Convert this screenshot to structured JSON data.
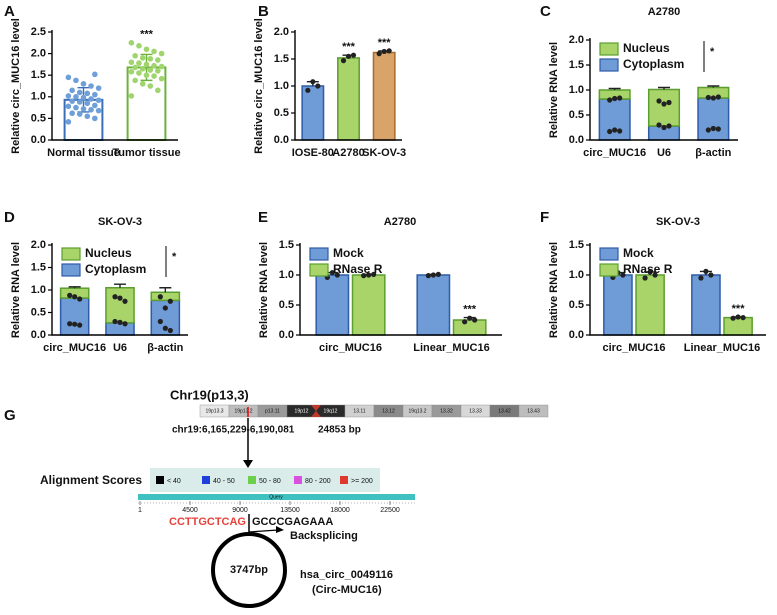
{
  "chart_data": [
    {
      "type": "bar",
      "panel": "A",
      "ylabel": "Relative circ_MUC16 level",
      "categories": [
        "Normal tissue",
        "Tumor tissue"
      ],
      "series": [
        {
          "colors": [
            "#3d6fb8",
            "#6cb23c"
          ],
          "point_colors": [
            "#6e9fd9",
            "#9fd56c"
          ],
          "bar_style": "outline",
          "values": [
            0.93,
            1.68
          ],
          "errors": [
            0.28,
            0.3
          ],
          "points": [
            [
              0.42,
              0.5,
              0.55,
              0.6,
              0.62,
              0.68,
              0.7,
              0.72,
              0.75,
              0.78,
              0.8,
              0.85,
              0.88,
              0.9,
              0.92,
              0.95,
              0.98,
              1.0,
              1.02,
              1.05,
              1.08,
              1.1,
              1.15,
              1.2,
              1.25,
              1.3,
              1.38,
              1.45,
              1.52
            ],
            [
              1.02,
              1.15,
              1.25,
              1.3,
              1.38,
              1.42,
              1.48,
              1.5,
              1.55,
              1.58,
              1.6,
              1.62,
              1.65,
              1.68,
              1.7,
              1.72,
              1.75,
              1.78,
              1.8,
              1.85,
              1.88,
              1.9,
              1.95,
              2.0,
              2.05,
              2.1,
              2.18,
              2.25
            ]
          ]
        }
      ],
      "annotations": [
        {
          "text": "***",
          "category": 1,
          "series": 0
        }
      ],
      "ylim": [
        0,
        2.5
      ],
      "yticks": [
        {
          "value": 0,
          "label": "0.0"
        },
        0.5,
        {
          "value": 1,
          "label": "1.0"
        },
        1.5,
        {
          "value": 2,
          "label": "2.0"
        },
        2.5
      ]
    },
    {
      "type": "bar",
      "panel": "B",
      "ylabel": "Relative circ_MUC16 level",
      "categories": [
        "IOSE-80",
        "A2780",
        "SK-OV-3"
      ],
      "series": [
        {
          "colors": [
            "#6f9bd6",
            "#a9d46a",
            "#d9a46a"
          ],
          "edge_colors": [
            "#2f5ca8",
            "#5c9e2f",
            "#a86b2c"
          ],
          "values": [
            1.0,
            1.52,
            1.62
          ],
          "errors": [
            0.08,
            0.05,
            0.03
          ],
          "points": [
            [
              0.92,
              1.08,
              1.0
            ],
            [
              1.47,
              1.55,
              1.57
            ],
            [
              1.6,
              1.64,
              1.65
            ]
          ]
        }
      ],
      "point_color": "#222222",
      "annotations": [
        {
          "text": "***",
          "category": 1,
          "series": 0
        },
        {
          "text": "***",
          "category": 2,
          "series": 0
        }
      ],
      "ylim": [
        0,
        2.0
      ],
      "yticks": [
        {
          "value": 0,
          "label": "0.0"
        },
        0.5,
        {
          "value": 1,
          "label": "1.0"
        },
        1.5,
        {
          "value": 2,
          "label": "2.0"
        }
      ]
    },
    {
      "type": "bar",
      "panel": "C",
      "title": "A2780",
      "ylabel": "Relative RNA level",
      "stacked": true,
      "legend": "upper left",
      "legend_note": "*",
      "categories": [
        "circ_MUC16",
        "U6",
        "β-actin"
      ],
      "series": [
        {
          "name": "Nucleus",
          "color": "#a9d46a",
          "edge": "#5c9e2f",
          "values": [
            0.18,
            0.73,
            0.21
          ],
          "errors": [
            0.03,
            0.04,
            0.03
          ],
          "points": [
            [
              0.17,
              0.2,
              0.18
            ],
            [
              0.78,
              0.72,
              0.75
            ],
            [
              0.2,
              0.23,
              0.22
            ]
          ]
        },
        {
          "name": "Cytoplasm",
          "color": "#6f9bd6",
          "edge": "#2f5ca8",
          "values": [
            0.82,
            0.28,
            0.84
          ],
          "points": [
            [
              0.8,
              0.83,
              0.84
            ],
            [
              0.3,
              0.25,
              0.28
            ],
            [
              0.85,
              0.84,
              0.86
            ]
          ]
        }
      ],
      "point_color": "#222222",
      "ylim": [
        0,
        2.0
      ],
      "yticks": [
        {
          "value": 0,
          "label": "0.0"
        },
        0.5,
        {
          "value": 1,
          "label": "1.0"
        },
        1.5,
        {
          "value": 2,
          "label": "2.0"
        }
      ]
    },
    {
      "type": "bar",
      "panel": "D",
      "title": "SK-OV-3",
      "ylabel": "Relative RNA level",
      "stacked": true,
      "legend": "upper left",
      "legend_note": "*",
      "categories": [
        "circ_MUC16",
        "U6",
        "β-actin"
      ],
      "series": [
        {
          "name": "Nucleus",
          "color": "#a9d46a",
          "edge": "#5c9e2f",
          "values": [
            0.22,
            0.78,
            0.18
          ],
          "errors": [
            0.03,
            0.08,
            0.1
          ],
          "points": [
            [
              0.25,
              0.24,
              0.22
            ],
            [
              0.85,
              0.82,
              0.75
            ],
            [
              0.3,
              0.15,
              0.1
            ]
          ]
        },
        {
          "name": "Cytoplasm",
          "color": "#6f9bd6",
          "edge": "#2f5ca8",
          "values": [
            0.82,
            0.27,
            0.77
          ],
          "points": [
            [
              0.88,
              0.85,
              0.8
            ],
            [
              0.3,
              0.28,
              0.25
            ],
            [
              0.85,
              0.6,
              0.75
            ]
          ]
        }
      ],
      "point_color": "#222222",
      "ylim": [
        0,
        2.0
      ],
      "yticks": [
        {
          "value": 0,
          "label": "0.0"
        },
        0.5,
        {
          "value": 1,
          "label": "1.0"
        },
        1.5,
        {
          "value": 2,
          "label": "2.0"
        }
      ]
    },
    {
      "type": "bar",
      "panel": "E",
      "title": "A2780",
      "ylabel": "Relative RNA level",
      "legend": "upper left",
      "categories": [
        "circ_MUC16",
        "Linear_MUC16"
      ],
      "series": [
        {
          "name": "Mock",
          "color": "#6f9bd6",
          "edge": "#2f5ca8",
          "values": [
            1.0,
            1.0
          ],
          "errors": [
            0.04,
            0.01
          ],
          "points": [
            [
              0.96,
              1.04,
              1.0
            ],
            [
              0.99,
              1.0,
              1.01
            ]
          ]
        },
        {
          "name": "RNase R",
          "color": "#a9d46a",
          "edge": "#5c9e2f",
          "values": [
            1.0,
            0.25
          ],
          "errors": [
            0.01,
            0.04
          ],
          "points": [
            [
              0.99,
              1.0,
              1.01
            ],
            [
              0.22,
              0.28,
              0.25
            ]
          ]
        }
      ],
      "point_color": "#222222",
      "annotations": [
        {
          "text": "***",
          "category": 1,
          "series": 1
        }
      ],
      "ylim": [
        0,
        1.5
      ],
      "yticks": [
        {
          "value": 0,
          "label": "0.0"
        },
        0.5,
        {
          "value": 1,
          "label": "1.0"
        },
        1.5
      ]
    },
    {
      "type": "bar",
      "panel": "F",
      "title": "SK-OV-3",
      "ylabel": "Relative RNA level",
      "legend": "upper left",
      "categories": [
        "circ_MUC16",
        "Linear_MUC16"
      ],
      "series": [
        {
          "name": "Mock",
          "color": "#6f9bd6",
          "edge": "#2f5ca8",
          "values": [
            1.0,
            1.0
          ],
          "errors": [
            0.04,
            0.06
          ],
          "points": [
            [
              0.96,
              1.04,
              1.0
            ],
            [
              0.95,
              1.06,
              1.0
            ]
          ]
        },
        {
          "name": "RNase R",
          "color": "#a9d46a",
          "edge": "#5c9e2f",
          "values": [
            1.0,
            0.29
          ],
          "errors": [
            0.05,
            0.01
          ],
          "points": [
            [
              0.95,
              1.05,
              1.0
            ],
            [
              0.28,
              0.3,
              0.29
            ]
          ]
        }
      ],
      "point_color": "#222222",
      "annotations": [
        {
          "text": "***",
          "category": 1,
          "series": 1
        }
      ],
      "ylim": [
        0,
        1.5
      ],
      "yticks": [
        {
          "value": 0,
          "label": "0.0"
        },
        0.5,
        {
          "value": 1,
          "label": "1.0"
        },
        1.5
      ]
    }
  ],
  "panel_g": {
    "letter": "G",
    "chromosome": "Chr19(p13,3)",
    "bands": [
      "19p13.3",
      "19p13.2",
      "p13.11",
      "19p12",
      "19q12",
      "13.11",
      "13.12",
      "19q13.2",
      "13.32",
      "13.33",
      "13.42",
      "13.43"
    ],
    "locus": "chr19:6,165,229-6,190,081",
    "length": "24853 bp",
    "alignment_title": "Alignment Scores",
    "score_legend": [
      "< 40",
      "40 - 50",
      "50 - 80",
      "80 - 200",
      ">= 200"
    ],
    "query_label": "Query",
    "query_ticks": [
      "1",
      "4500",
      "9000",
      "13500",
      "18000",
      "22500"
    ],
    "seq_left": "CCTTGCTCAG",
    "seq_right": "GCCCGAGAAA",
    "backsplicing": "Backsplicing",
    "circle_size": "3747bp",
    "circ_id": "hsa_circ_0049116",
    "circ_alias": "(Circ-MUC16)"
  }
}
